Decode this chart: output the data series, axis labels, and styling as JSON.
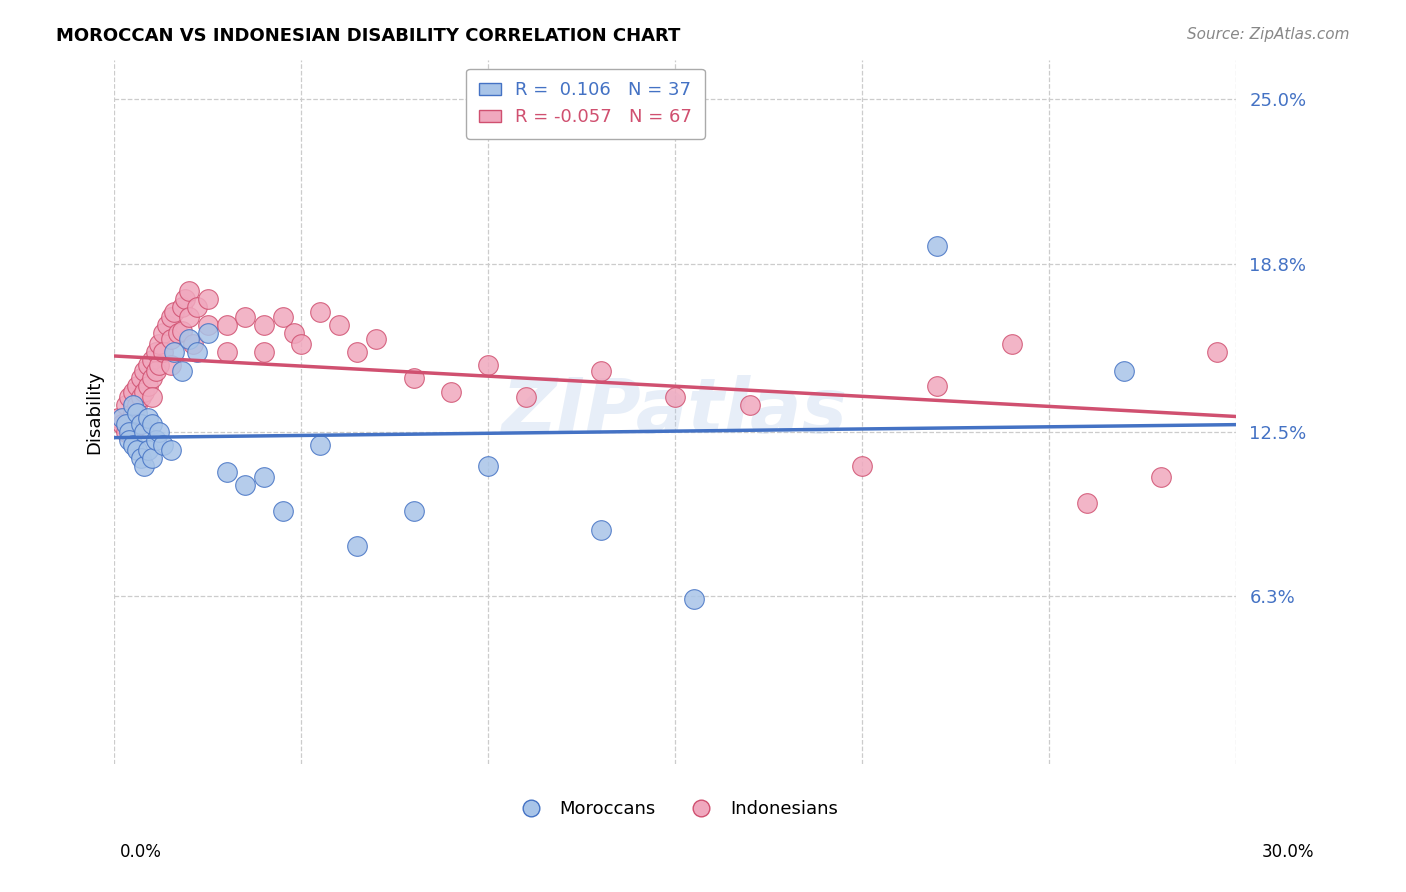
{
  "title": "MOROCCAN VS INDONESIAN DISABILITY CORRELATION CHART",
  "source": "Source: ZipAtlas.com",
  "ylabel": "Disability",
  "yticks": [
    0.063,
    0.125,
    0.188,
    0.25
  ],
  "ytick_labels": [
    "6.3%",
    "12.5%",
    "18.8%",
    "25.0%"
  ],
  "xmin": 0.0,
  "xmax": 0.3,
  "ymin": 0.0,
  "ymax": 0.265,
  "moroccan_R": 0.106,
  "moroccan_N": 37,
  "indonesian_R": -0.057,
  "indonesian_N": 67,
  "moroccan_color": "#a8c4e8",
  "indonesian_color": "#f0a8be",
  "moroccan_line_color": "#4472c4",
  "indonesian_line_color": "#d05070",
  "watermark": "ZIPatlas",
  "moroccan_x": [
    0.002,
    0.003,
    0.004,
    0.004,
    0.005,
    0.005,
    0.006,
    0.006,
    0.007,
    0.007,
    0.008,
    0.008,
    0.009,
    0.009,
    0.01,
    0.01,
    0.011,
    0.012,
    0.013,
    0.015,
    0.016,
    0.018,
    0.02,
    0.022,
    0.025,
    0.03,
    0.035,
    0.04,
    0.045,
    0.055,
    0.065,
    0.08,
    0.1,
    0.13,
    0.155,
    0.22,
    0.27
  ],
  "moroccan_y": [
    0.13,
    0.128,
    0.125,
    0.122,
    0.135,
    0.12,
    0.132,
    0.118,
    0.128,
    0.115,
    0.125,
    0.112,
    0.13,
    0.118,
    0.128,
    0.115,
    0.122,
    0.125,
    0.12,
    0.118,
    0.155,
    0.148,
    0.16,
    0.155,
    0.162,
    0.11,
    0.105,
    0.108,
    0.095,
    0.12,
    0.082,
    0.095,
    0.112,
    0.088,
    0.062,
    0.195,
    0.148
  ],
  "indonesian_x": [
    0.001,
    0.002,
    0.003,
    0.003,
    0.004,
    0.004,
    0.005,
    0.005,
    0.005,
    0.006,
    0.006,
    0.007,
    0.007,
    0.007,
    0.008,
    0.008,
    0.009,
    0.009,
    0.01,
    0.01,
    0.01,
    0.011,
    0.011,
    0.012,
    0.012,
    0.013,
    0.013,
    0.014,
    0.015,
    0.015,
    0.015,
    0.016,
    0.017,
    0.018,
    0.018,
    0.019,
    0.02,
    0.02,
    0.021,
    0.022,
    0.025,
    0.025,
    0.03,
    0.03,
    0.035,
    0.04,
    0.04,
    0.045,
    0.048,
    0.05,
    0.055,
    0.06,
    0.065,
    0.07,
    0.08,
    0.09,
    0.1,
    0.11,
    0.13,
    0.15,
    0.17,
    0.2,
    0.22,
    0.24,
    0.26,
    0.28,
    0.295
  ],
  "indonesian_y": [
    0.13,
    0.128,
    0.135,
    0.125,
    0.138,
    0.128,
    0.14,
    0.132,
    0.125,
    0.142,
    0.135,
    0.145,
    0.138,
    0.128,
    0.148,
    0.14,
    0.15,
    0.142,
    0.152,
    0.145,
    0.138,
    0.155,
    0.148,
    0.158,
    0.15,
    0.162,
    0.155,
    0.165,
    0.168,
    0.16,
    0.15,
    0.17,
    0.162,
    0.172,
    0.163,
    0.175,
    0.178,
    0.168,
    0.158,
    0.172,
    0.175,
    0.165,
    0.165,
    0.155,
    0.168,
    0.165,
    0.155,
    0.168,
    0.162,
    0.158,
    0.17,
    0.165,
    0.155,
    0.16,
    0.145,
    0.14,
    0.15,
    0.138,
    0.148,
    0.138,
    0.135,
    0.112,
    0.142,
    0.158,
    0.098,
    0.108,
    0.155
  ]
}
